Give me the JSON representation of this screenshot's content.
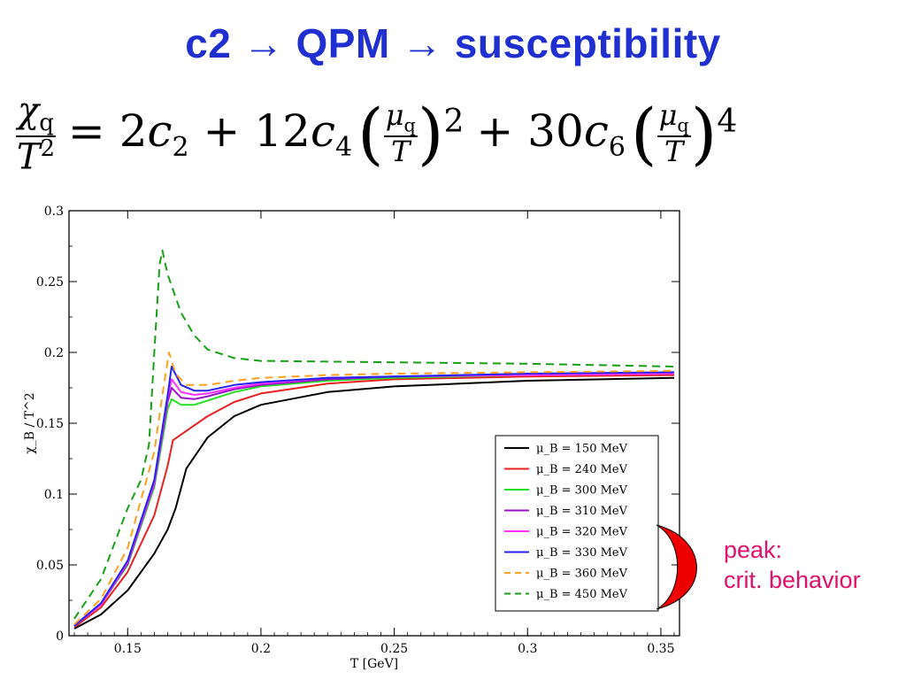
{
  "slide": {
    "title": "c2 → QPM → susceptibility",
    "formula": {
      "lhs_num": "χq",
      "lhs_den": "T2",
      "term1": "= 2c2 + 12c4",
      "term2": "+ 30c6",
      "frac_num": "μq",
      "frac_den": "T",
      "exp1": "2",
      "exp2": "4"
    },
    "annotation": [
      "peak:",
      "crit. behavior"
    ],
    "annotation_color": "#e0106b",
    "title_color": "#1f2fd0"
  },
  "chart_data": {
    "type": "line",
    "title": "",
    "xlabel": "T [GeV]",
    "ylabel": "χ_B / T^2",
    "xlim": [
      0.128,
      0.357
    ],
    "ylim": [
      0,
      0.3
    ],
    "xticks": [
      0.15,
      0.2,
      0.25,
      0.3,
      0.35
    ],
    "xtick_labels": [
      "0.15",
      "0.2",
      "0.25",
      "0.3",
      "0.35"
    ],
    "yticks": [
      0,
      0.05,
      0.1,
      0.15,
      0.2,
      0.25,
      0.3
    ],
    "ytick_labels": [
      "0",
      "0.05",
      "0.1",
      "0.15",
      "0.2",
      "0.25",
      "0.3"
    ],
    "grid": false,
    "legend_position": "bottom-right",
    "series": [
      {
        "name": "μ_B = 150 MeV",
        "color": "#000000",
        "dash": "solid",
        "x": [
          0.13,
          0.14,
          0.15,
          0.16,
          0.165,
          0.168,
          0.172,
          0.18,
          0.19,
          0.2,
          0.225,
          0.25,
          0.3,
          0.355
        ],
        "y": [
          0.005,
          0.015,
          0.032,
          0.058,
          0.075,
          0.09,
          0.118,
          0.14,
          0.155,
          0.163,
          0.172,
          0.176,
          0.18,
          0.182
        ]
      },
      {
        "name": "μ_B = 240 MeV",
        "color": "#e82020",
        "dash": "solid",
        "x": [
          0.13,
          0.14,
          0.15,
          0.16,
          0.165,
          0.167,
          0.17,
          0.18,
          0.19,
          0.2,
          0.225,
          0.25,
          0.3,
          0.355
        ],
        "y": [
          0.006,
          0.02,
          0.045,
          0.085,
          0.12,
          0.138,
          0.142,
          0.155,
          0.165,
          0.171,
          0.178,
          0.181,
          0.183,
          0.184
        ]
      },
      {
        "name": "μ_B = 300 MeV",
        "color": "#22e022",
        "dash": "solid",
        "x": [
          0.13,
          0.14,
          0.15,
          0.16,
          0.165,
          0.1665,
          0.17,
          0.175,
          0.18,
          0.19,
          0.2,
          0.225,
          0.25,
          0.3,
          0.355
        ],
        "y": [
          0.007,
          0.022,
          0.05,
          0.105,
          0.16,
          0.167,
          0.163,
          0.163,
          0.166,
          0.172,
          0.176,
          0.18,
          0.182,
          0.184,
          0.185
        ]
      },
      {
        "name": "μ_B = 310 MeV",
        "color": "#9910c8",
        "dash": "solid",
        "x": [
          0.13,
          0.14,
          0.15,
          0.16,
          0.165,
          0.1665,
          0.17,
          0.175,
          0.18,
          0.19,
          0.2,
          0.225,
          0.25,
          0.3,
          0.355
        ],
        "y": [
          0.007,
          0.022,
          0.051,
          0.107,
          0.165,
          0.175,
          0.168,
          0.167,
          0.169,
          0.174,
          0.177,
          0.181,
          0.183,
          0.184,
          0.185
        ]
      },
      {
        "name": "μ_B = 320 MeV",
        "color": "#ff30ff",
        "dash": "solid",
        "x": [
          0.13,
          0.14,
          0.15,
          0.16,
          0.165,
          0.1665,
          0.17,
          0.175,
          0.18,
          0.19,
          0.2,
          0.225,
          0.25,
          0.3,
          0.355
        ],
        "y": [
          0.007,
          0.022,
          0.052,
          0.108,
          0.168,
          0.181,
          0.172,
          0.17,
          0.171,
          0.175,
          0.178,
          0.182,
          0.183,
          0.184,
          0.185
        ]
      },
      {
        "name": "μ_B = 330 MeV",
        "color": "#2222f0",
        "dash": "solid",
        "x": [
          0.13,
          0.14,
          0.15,
          0.16,
          0.165,
          0.1665,
          0.17,
          0.175,
          0.18,
          0.19,
          0.2,
          0.225,
          0.25,
          0.3,
          0.355
        ],
        "y": [
          0.007,
          0.023,
          0.053,
          0.11,
          0.17,
          0.19,
          0.177,
          0.173,
          0.173,
          0.177,
          0.179,
          0.182,
          0.183,
          0.185,
          0.186
        ]
      },
      {
        "name": "μ_B = 360 MeV",
        "color": "#ffa020",
        "dash": "dashed",
        "x": [
          0.13,
          0.14,
          0.15,
          0.16,
          0.163,
          0.1655,
          0.168,
          0.172,
          0.18,
          0.19,
          0.2,
          0.225,
          0.25,
          0.3,
          0.355
        ],
        "y": [
          0.008,
          0.026,
          0.062,
          0.13,
          0.17,
          0.2,
          0.185,
          0.177,
          0.177,
          0.18,
          0.182,
          0.184,
          0.185,
          0.186,
          0.187
        ]
      },
      {
        "name": "μ_B = 450 MeV",
        "color": "#16a016",
        "dash": "dashed",
        "x": [
          0.13,
          0.14,
          0.15,
          0.155,
          0.158,
          0.16,
          0.162,
          0.163,
          0.165,
          0.17,
          0.175,
          0.18,
          0.19,
          0.2,
          0.25,
          0.3,
          0.355
        ],
        "y": [
          0.012,
          0.04,
          0.09,
          0.11,
          0.135,
          0.2,
          0.262,
          0.272,
          0.255,
          0.228,
          0.212,
          0.202,
          0.196,
          0.194,
          0.193,
          0.192,
          0.19
        ]
      }
    ]
  }
}
